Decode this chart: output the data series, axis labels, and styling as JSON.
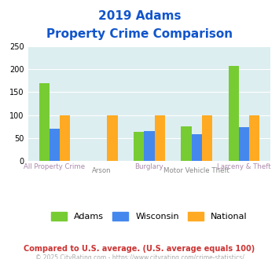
{
  "title_line1": "2019 Adams",
  "title_line2": "Property Crime Comparison",
  "categories": [
    "All Property Crime",
    "Arson",
    "Burglary",
    "Motor Vehicle Theft",
    "Larceny & Theft"
  ],
  "adams": [
    170,
    0,
    63,
    75,
    207
  ],
  "wisconsin": [
    70,
    0,
    65,
    58,
    73
  ],
  "national": [
    100,
    100,
    100,
    100,
    100
  ],
  "bar_colors": {
    "adams": "#77cc33",
    "wisconsin": "#4488ee",
    "national": "#ffaa22"
  },
  "ylim": [
    0,
    250
  ],
  "yticks": [
    0,
    50,
    100,
    150,
    200,
    250
  ],
  "xlabel_colors": {
    "main": "#aa88aa",
    "alt": "#888888"
  },
  "title_color": "#1155cc",
  "legend_labels": [
    "Adams",
    "Wisconsin",
    "National"
  ],
  "footnote1": "Compared to U.S. average. (U.S. average equals 100)",
  "footnote2": "© 2025 CityRating.com - https://www.cityrating.com/crime-statistics/",
  "footnote1_color": "#cc3333",
  "footnote2_color": "#aaaaaa",
  "bg_color": "#ddeef0",
  "fig_bg": "#ffffff",
  "grid_color": "#ffffff",
  "bar_width": 0.22
}
